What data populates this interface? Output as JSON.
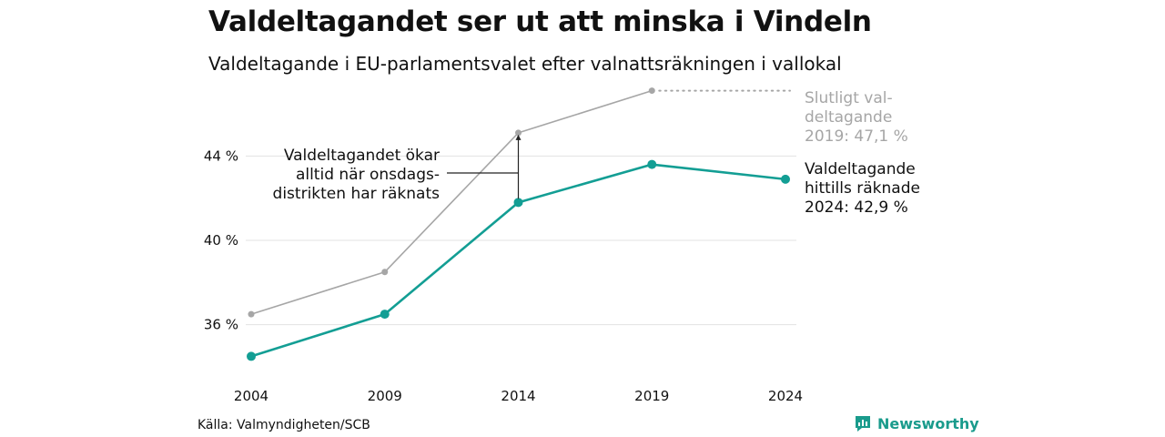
{
  "header": {
    "title": "Valdeltagandet ser ut att minska i Vindeln",
    "subtitle": "Valdeltagande i EU-parlamentsvalet efter valnattsräkningen i vallokal"
  },
  "footer": {
    "source": "Källa: Valmyndigheten/SCB",
    "brand": "Newsworthy"
  },
  "chart_data": {
    "type": "line",
    "title": "Valdeltagandet ser ut att minska i Vindeln",
    "subtitle": "Valdeltagande i EU-parlamentsvalet efter valnattsräkningen i vallokal",
    "x": [
      "2004",
      "2009",
      "2014",
      "2019",
      "2024"
    ],
    "y_ticks": [
      "36 %",
      "40 %",
      "44 %"
    ],
    "y_tick_values": [
      36,
      40,
      44
    ],
    "ylim": [
      34.0,
      47.6
    ],
    "grid": true,
    "series": [
      {
        "name": "Slutligt valdeltagande",
        "color": "#a6a6a6",
        "values": [
          36.5,
          38.5,
          45.1,
          47.1,
          null
        ]
      },
      {
        "name": "Valdeltagande hittills räknade",
        "color": "#139e94",
        "values": [
          34.5,
          36.5,
          41.8,
          43.6,
          42.9
        ]
      }
    ],
    "annotations": {
      "gap": [
        "Valdeltagandet ökar",
        "alltid när onsdags-",
        "distrikten har räknats"
      ],
      "final": [
        "Slutligt val-",
        "deltagande",
        "2019: 47,1 %"
      ],
      "current": [
        "Valdeltagande",
        "hittills räknade",
        "2024: 42,9 %"
      ]
    }
  }
}
